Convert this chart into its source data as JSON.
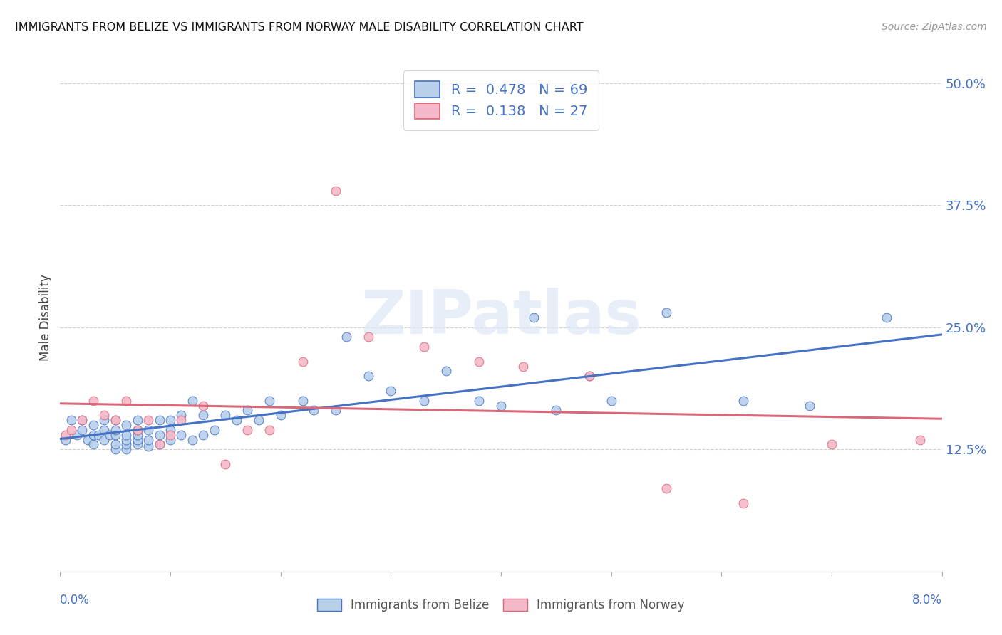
{
  "title": "IMMIGRANTS FROM BELIZE VS IMMIGRANTS FROM NORWAY MALE DISABILITY CORRELATION CHART",
  "source": "Source: ZipAtlas.com",
  "ylabel": "Male Disability",
  "ytick_labels": [
    "12.5%",
    "25.0%",
    "37.5%",
    "50.0%"
  ],
  "ytick_values": [
    0.125,
    0.25,
    0.375,
    0.5
  ],
  "xmin": 0.0,
  "xmax": 0.08,
  "ymin": 0.0,
  "ymax": 0.52,
  "legend_r1": "0.478",
  "legend_n1": "69",
  "legend_r2": "0.138",
  "legend_n2": "27",
  "color_belize_fill": "#b8d0ea",
  "color_norway_fill": "#f5b8c8",
  "color_line_belize": "#4472c4",
  "color_line_norway": "#d9687a",
  "color_text_blue": "#4472c4",
  "watermark": "ZIPatlas",
  "belize_x": [
    0.0005,
    0.001,
    0.0015,
    0.002,
    0.002,
    0.0025,
    0.003,
    0.003,
    0.003,
    0.0035,
    0.004,
    0.004,
    0.004,
    0.0045,
    0.005,
    0.005,
    0.005,
    0.005,
    0.005,
    0.006,
    0.006,
    0.006,
    0.006,
    0.006,
    0.007,
    0.007,
    0.007,
    0.007,
    0.007,
    0.008,
    0.008,
    0.008,
    0.009,
    0.009,
    0.009,
    0.01,
    0.01,
    0.01,
    0.011,
    0.011,
    0.012,
    0.012,
    0.013,
    0.013,
    0.014,
    0.015,
    0.016,
    0.017,
    0.018,
    0.019,
    0.02,
    0.022,
    0.023,
    0.025,
    0.026,
    0.028,
    0.03,
    0.033,
    0.035,
    0.038,
    0.04,
    0.043,
    0.045,
    0.048,
    0.05,
    0.055,
    0.062,
    0.068,
    0.075
  ],
  "belize_y": [
    0.135,
    0.155,
    0.14,
    0.145,
    0.155,
    0.135,
    0.13,
    0.14,
    0.15,
    0.14,
    0.135,
    0.145,
    0.155,
    0.14,
    0.125,
    0.13,
    0.14,
    0.145,
    0.155,
    0.125,
    0.13,
    0.135,
    0.14,
    0.15,
    0.13,
    0.135,
    0.14,
    0.145,
    0.155,
    0.128,
    0.135,
    0.145,
    0.13,
    0.14,
    0.155,
    0.135,
    0.145,
    0.155,
    0.14,
    0.16,
    0.135,
    0.175,
    0.14,
    0.16,
    0.145,
    0.16,
    0.155,
    0.165,
    0.155,
    0.175,
    0.16,
    0.175,
    0.165,
    0.165,
    0.24,
    0.2,
    0.185,
    0.175,
    0.205,
    0.175,
    0.17,
    0.26,
    0.165,
    0.2,
    0.175,
    0.265,
    0.175,
    0.17,
    0.26
  ],
  "norway_x": [
    0.0005,
    0.001,
    0.002,
    0.003,
    0.004,
    0.005,
    0.006,
    0.007,
    0.008,
    0.009,
    0.01,
    0.011,
    0.013,
    0.015,
    0.017,
    0.019,
    0.022,
    0.025,
    0.028,
    0.033,
    0.038,
    0.042,
    0.048,
    0.055,
    0.062,
    0.07,
    0.078
  ],
  "norway_y": [
    0.14,
    0.145,
    0.155,
    0.175,
    0.16,
    0.155,
    0.175,
    0.145,
    0.155,
    0.13,
    0.14,
    0.155,
    0.17,
    0.11,
    0.145,
    0.145,
    0.215,
    0.39,
    0.24,
    0.23,
    0.215,
    0.21,
    0.2,
    0.085,
    0.07,
    0.13,
    0.135
  ]
}
